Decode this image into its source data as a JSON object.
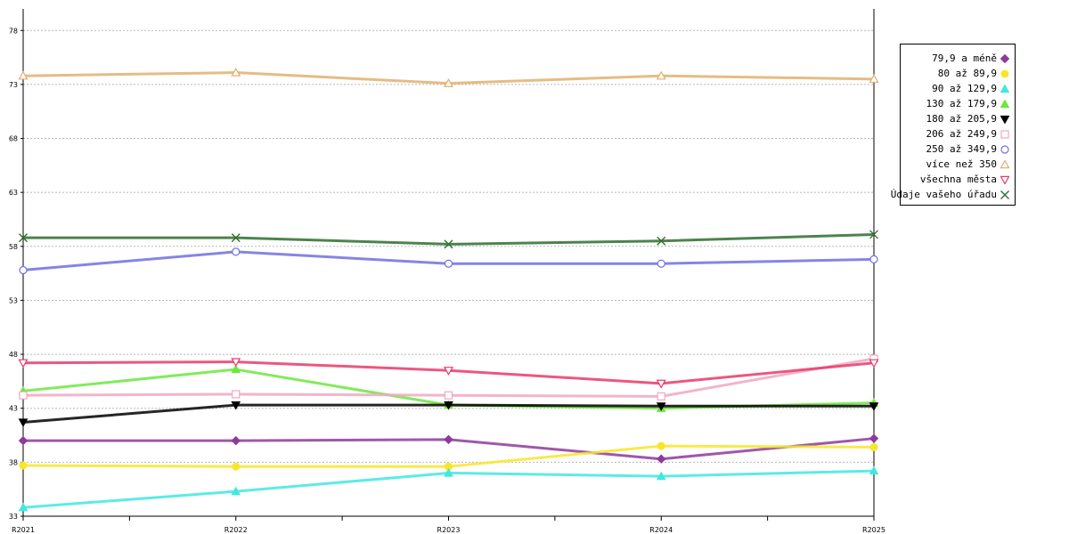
{
  "chart_data": {
    "type": "line",
    "title": "",
    "xlabel": "",
    "ylabel": "",
    "categories": [
      "R2021",
      "R2022",
      "R2023",
      "R2024",
      "R2025"
    ],
    "ylim": [
      33,
      80
    ],
    "yticks": [
      33,
      38,
      43,
      48,
      53,
      58,
      63,
      68,
      73,
      78
    ],
    "grid": "horizontal-dashed",
    "legend_position": "right",
    "series": [
      {
        "name": "79,9 a méně",
        "color": "#8e3a9c",
        "marker": "diamond-filled",
        "values": [
          40.0,
          40.0,
          40.1,
          38.3,
          40.2
        ]
      },
      {
        "name": "80 až 89,9",
        "color": "#f7e62a",
        "marker": "circle-filled",
        "values": [
          37.7,
          37.6,
          37.6,
          39.5,
          39.4
        ]
      },
      {
        "name": "90 až 129,9",
        "color": "#3fe8e0",
        "marker": "triangle-up-filled",
        "values": [
          33.8,
          35.3,
          37.0,
          36.7,
          37.2
        ]
      },
      {
        "name": "130 až 179,9",
        "color": "#6be83c",
        "marker": "triangle-up-filled",
        "values": [
          44.6,
          46.6,
          43.3,
          43.0,
          43.5
        ]
      },
      {
        "name": "180 až 205,9",
        "color": "#000000",
        "marker": "triangle-down-filled",
        "values": [
          41.7,
          43.3,
          43.3,
          43.2,
          43.2
        ]
      },
      {
        "name": "206 až 249,9",
        "color": "#f0a8c0",
        "marker": "square-open",
        "values": [
          44.2,
          44.3,
          44.2,
          44.1,
          47.6
        ]
      },
      {
        "name": "250 až 349,9",
        "color": "#7070e0",
        "marker": "circle-open",
        "values": [
          55.8,
          57.5,
          56.4,
          56.4,
          56.8
        ]
      },
      {
        "name": "více než 350",
        "color": "#e0b070",
        "marker": "triangle-up-open",
        "values": [
          73.8,
          74.1,
          73.1,
          73.8,
          73.5
        ]
      },
      {
        "name": "všechna města",
        "color": "#e83a6a",
        "marker": "triangle-down-open",
        "values": [
          47.2,
          47.3,
          46.5,
          45.3,
          47.2
        ]
      },
      {
        "name": "Údaje vašeho úřadu",
        "color": "#2e6e2e",
        "marker": "x",
        "values": [
          58.8,
          58.8,
          58.2,
          58.5,
          59.1
        ]
      }
    ]
  }
}
